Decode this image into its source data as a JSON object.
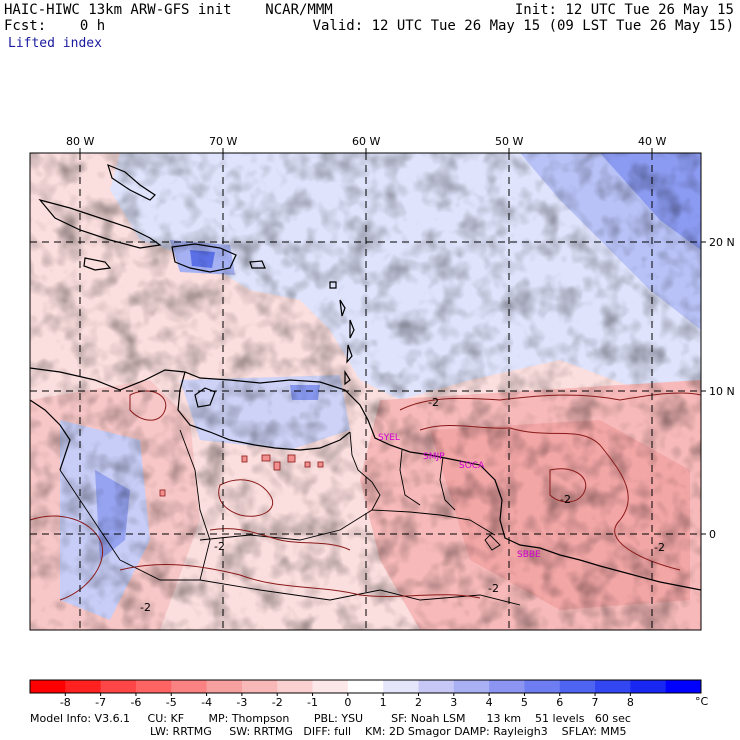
{
  "header": {
    "title": "HAIC-HIWC 13km ARW-GFS init    NCAR/MMM",
    "init": "Init: 12 UTC Tue 26 May 15",
    "fcst": "Fcst:    0 h",
    "valid": "Valid: 12 UTC Tue 26 May 15 (09 LST Tue 26 May 15)",
    "field": "Lifted index"
  },
  "map": {
    "lon_labels": [
      "80 W",
      "70 W",
      "60 W",
      "50 W",
      "40 W"
    ],
    "lat_labels": [
      "20 N",
      "10 N",
      "0"
    ],
    "contour_labels": [
      "-2",
      "-2",
      "-2",
      "-2",
      "-2",
      "-2"
    ],
    "stations": [
      "SYEL",
      "SMJP",
      "SOCA",
      "SBBE"
    ]
  },
  "colorbar": {
    "ticks": [
      "-8",
      "-7",
      "-6",
      "-5",
      "-4",
      "-3",
      "-2",
      "-1",
      "0",
      "1",
      "2",
      "3",
      "4",
      "5",
      "6",
      "7",
      "8"
    ],
    "unit": "°C",
    "colors": [
      "#ff0000",
      "#ff2020",
      "#ff4646",
      "#ff6464",
      "#fb8282",
      "#f6a0a0",
      "#f8b8b8",
      "#fad0d0",
      "#fce8e8",
      "#ffffff",
      "#e6e6fa",
      "#c8c8f6",
      "#aab0f4",
      "#8c96f2",
      "#6e7ef2",
      "#5064f2",
      "#3246f2",
      "#1828f2",
      "#0000ff"
    ]
  },
  "footer": {
    "line1": "Model Info: V3.6.1     CU: KF       MP: Thompson       PBL: YSU        SF: Noah LSM      13 km    51 levels   60 sec",
    "line2": "LW: RRTMG     SW: RRTMG   DIFF: full    KM: 2D Smagor DAMP: Rayleigh3    SFLAY: MM5"
  }
}
